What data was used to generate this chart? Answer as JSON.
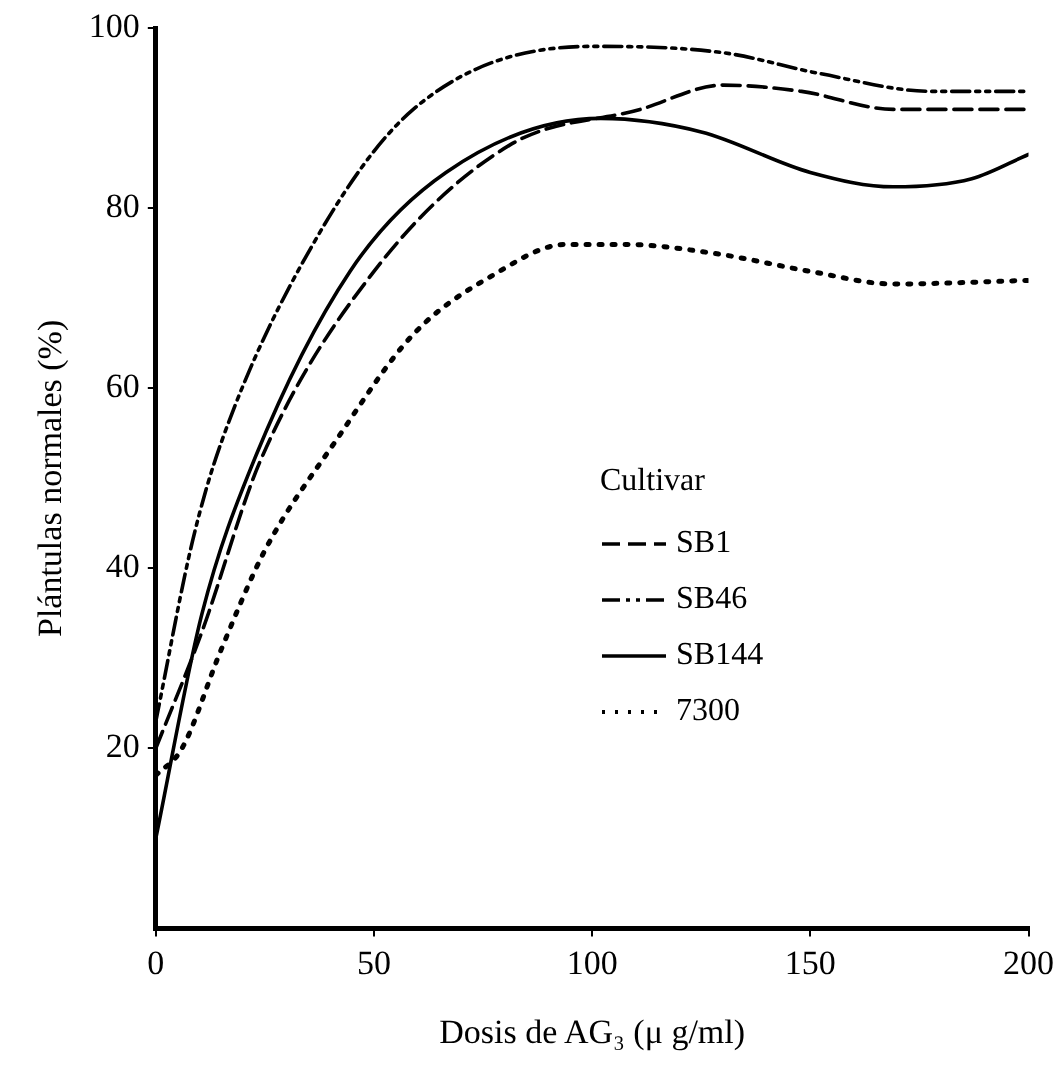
{
  "chart_data": {
    "type": "line",
    "xlabel": "Dosis de AG₃ (μ g/ml)",
    "ylabel": "Plántulas normales (%)",
    "legend_title": "Cultivar",
    "legend": "right",
    "grid": false,
    "marker": "none",
    "xlim": [
      0,
      200
    ],
    "xticks": [
      0,
      50,
      100,
      150,
      200
    ],
    "ylim": [
      0,
      100
    ],
    "yticks": [
      20,
      40,
      60,
      80,
      100
    ],
    "series": [
      {
        "name": "SB1",
        "color": "#000000",
        "line_style": "dashed",
        "x": [
          0,
          10.6,
          24,
          50,
          81,
          111,
          130,
          148,
          169,
          200
        ],
        "values": [
          20,
          33,
          52,
          73,
          87,
          91,
          93.7,
          93,
          91,
          91
        ]
      },
      {
        "name": "SB46",
        "color": "#000000",
        "line_style": "dashdotdot",
        "x": [
          0,
          8.4,
          15,
          36,
          59,
          100,
          130,
          152,
          178,
          200
        ],
        "values": [
          23,
          43,
          54,
          76,
          91,
          98,
          97.3,
          95,
          93,
          93
        ]
      },
      {
        "name": "SB144",
        "color": "#000000",
        "line_style": "solid",
        "x": [
          0,
          10.6,
          22.5,
          44.5,
          66.5,
          102,
          125,
          150,
          169,
          187,
          200
        ],
        "values": [
          10,
          35,
          52,
          73,
          84,
          90,
          88.5,
          84,
          82.4,
          83.3,
          86
        ]
      },
      {
        "name": "7300",
        "color": "#000000",
        "line_style": "dotted",
        "x": [
          0,
          6,
          15,
          25,
          41,
          59,
          77,
          94,
          107.5,
          128,
          150,
          169,
          200
        ],
        "values": [
          17,
          20,
          31,
          42,
          54,
          66,
          72.5,
          76,
          76,
          75,
          73,
          71.6,
          72
        ]
      }
    ]
  }
}
